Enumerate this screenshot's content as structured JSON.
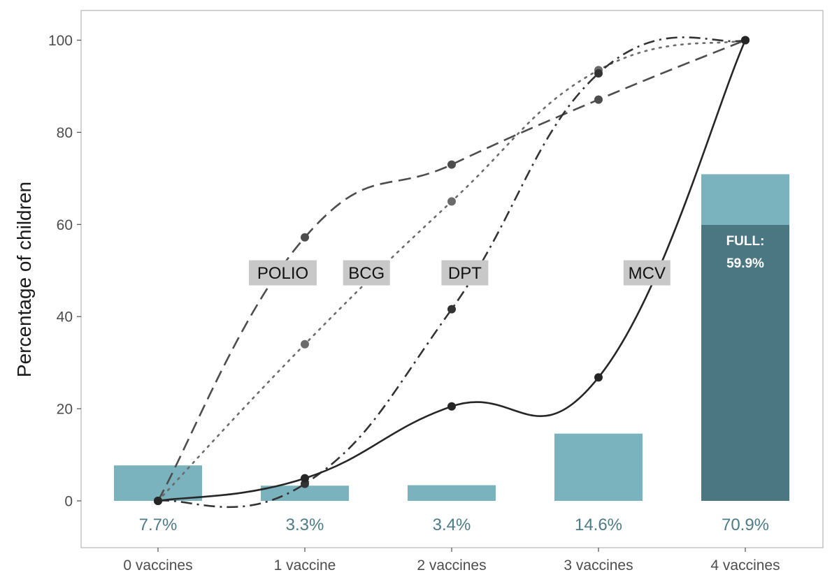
{
  "chart_data": {
    "type": "line",
    "categories": [
      "0 vaccines",
      "1 vaccine",
      "2 vaccines",
      "3 vaccines",
      "4 vaccines"
    ],
    "ylabel": "Percentage of children",
    "xlabel": "",
    "ylim": [
      -10,
      110
    ],
    "yticks": [
      0,
      20,
      40,
      60,
      80,
      100
    ],
    "grid": false,
    "bars": {
      "values": [
        7.7,
        3.3,
        3.4,
        14.6,
        70.9
      ],
      "labels": [
        "7.7%",
        "3.3%",
        "3.4%",
        "14.6%",
        "70.9%"
      ],
      "color": "#7ab2be",
      "label_color": "#4e7b86"
    },
    "full_vaccination": {
      "value": 59.9,
      "label_line1": "FULL:",
      "label_line2": "59.9%",
      "color": "#4a7782"
    },
    "series": [
      {
        "name": "POLIO",
        "values": [
          0,
          57.2,
          73.0,
          87.1,
          100
        ],
        "dash": "dashed",
        "color": "#4d4d4d"
      },
      {
        "name": "BCG",
        "values": [
          0,
          34.0,
          65.0,
          93.5,
          100
        ],
        "dash": "dotted",
        "color": "#6b6b6b"
      },
      {
        "name": "DPT",
        "values": [
          0,
          3.7,
          41.6,
          92.8,
          100
        ],
        "dash": "dashdot",
        "color": "#333333"
      },
      {
        "name": "MCV",
        "values": [
          0,
          4.9,
          20.5,
          26.8,
          100
        ],
        "dash": "solid",
        "color": "#262626"
      }
    ],
    "series_tags": [
      {
        "text": "POLIO",
        "x": 0.85,
        "y": 49.5
      },
      {
        "text": "BCG",
        "x": 1.42,
        "y": 49.5
      },
      {
        "text": "DPT",
        "x": 2.09,
        "y": 49.5
      },
      {
        "text": "MCV",
        "x": 3.33,
        "y": 49.5
      }
    ]
  }
}
